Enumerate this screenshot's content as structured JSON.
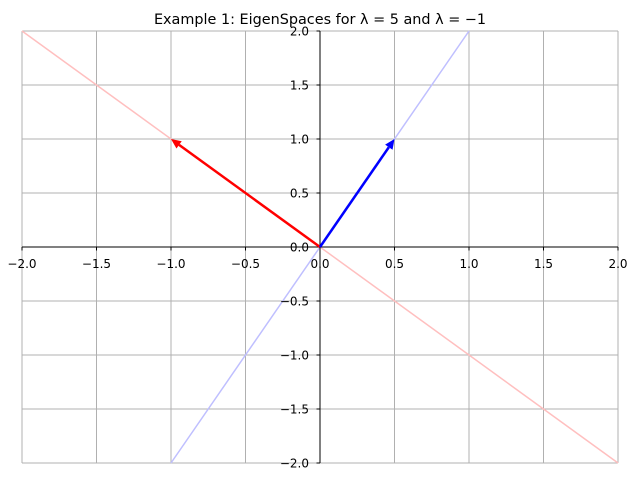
{
  "chart_data": {
    "type": "line",
    "title": "Example 1: EigenSpaces for λ = 5 and λ = −1",
    "xlabel": "",
    "ylabel": "",
    "xlim": [
      -2.0,
      2.0
    ],
    "ylim": [
      -2.0,
      2.0
    ],
    "grid": true,
    "spines": "centered at origin",
    "x_ticks": [
      -2.0,
      -1.5,
      -1.0,
      -0.5,
      0.0,
      0.5,
      1.0,
      1.5,
      2.0
    ],
    "y_ticks": [
      -2.0,
      -1.5,
      -1.0,
      -0.5,
      0.0,
      0.5,
      1.0,
      1.5,
      2.0
    ],
    "x_tick_labels": [
      "−2.0",
      "−1.5",
      "−1.0",
      "−0.5",
      "0.0",
      "0.5",
      "1.0",
      "1.5",
      "2.0"
    ],
    "y_tick_labels": [
      "−2.0",
      "−1.5",
      "−1.0",
      "−0.5",
      "0.0",
      "0.5",
      "1.0",
      "1.5",
      "2.0"
    ],
    "eigenspace_lines": [
      {
        "color": "#ffbfbf",
        "points": [
          [
            -2.0,
            2.0
          ],
          [
            2.0,
            -2.0
          ]
        ]
      },
      {
        "color": "#bfbfff",
        "points": [
          [
            -1.0,
            -2.0
          ],
          [
            1.0,
            2.0
          ]
        ]
      }
    ],
    "vectors": [
      {
        "color": "#ff0000",
        "from": [
          0,
          0
        ],
        "to": [
          -1.0,
          1.0
        ]
      },
      {
        "color": "#0000ff",
        "from": [
          0,
          0
        ],
        "to": [
          0.5,
          1.0
        ]
      }
    ]
  }
}
